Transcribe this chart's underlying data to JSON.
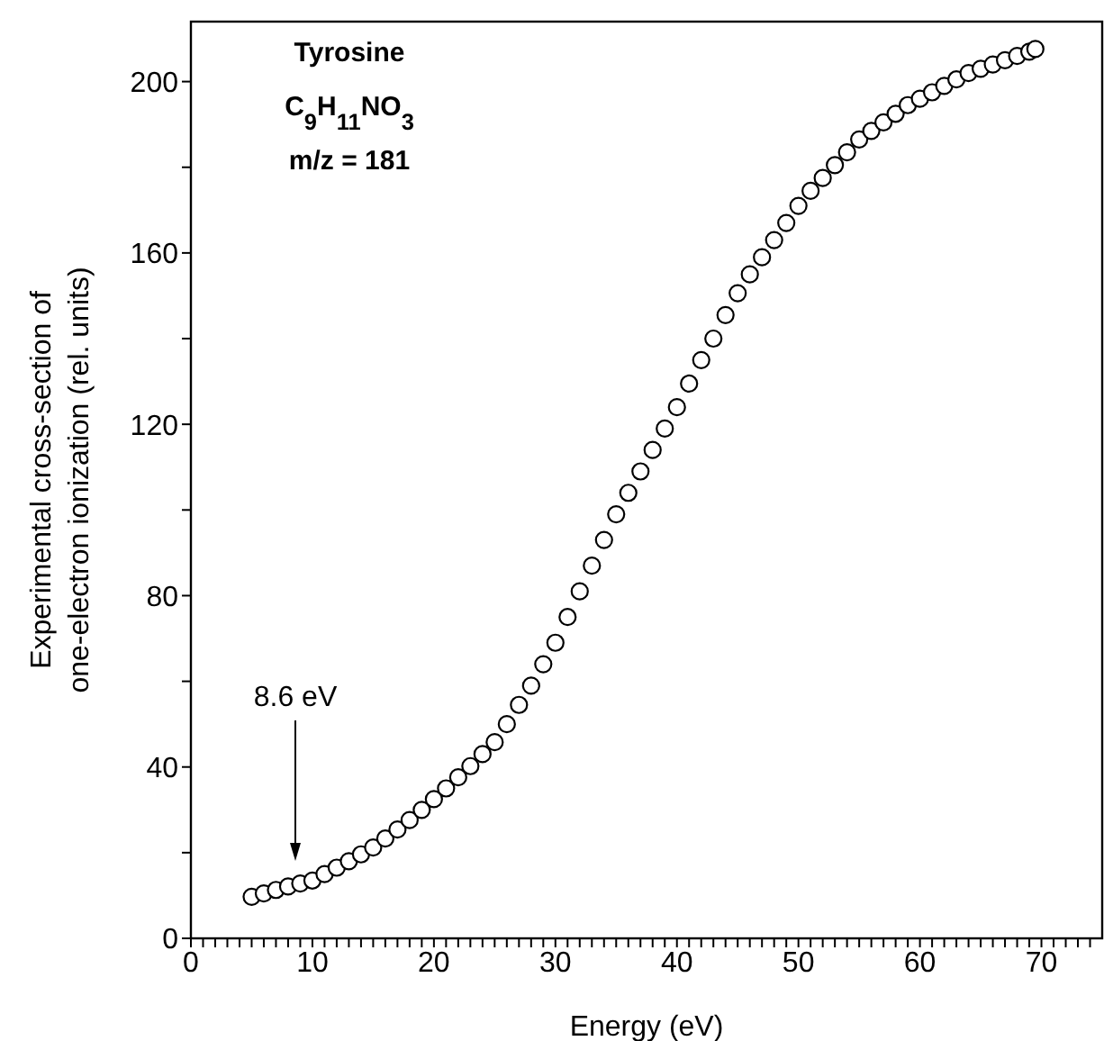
{
  "chart_data": {
    "type": "scatter",
    "xlabel": "Energy (eV)",
    "ylabel": "Experimental cross-section of one-electron ionization (rel. units)",
    "annotations": [
      "Tyrosine",
      "C$_{9}$H$_{11}$NO$_{3}$",
      "m/z = 181",
      "8.6 eV"
    ],
    "marker": "circle",
    "xlim": [
      0,
      75
    ],
    "ylim": [
      0,
      214
    ],
    "xticks": [
      0,
      {
        "value": 1,
        "label": null
      },
      {
        "value": 2,
        "label": null
      },
      {
        "value": 3,
        "label": null
      },
      {
        "value": 4,
        "label": null
      },
      {
        "value": 5,
        "label": null
      },
      {
        "value": 6,
        "label": null
      },
      {
        "value": 7,
        "label": null
      },
      {
        "value": 8,
        "label": null
      },
      {
        "value": 9,
        "label": null
      },
      10,
      {
        "value": 11,
        "label": null
      },
      {
        "value": 12,
        "label": null
      },
      {
        "value": 13,
        "label": null
      },
      {
        "value": 14,
        "label": null
      },
      {
        "value": 15,
        "label": null
      },
      {
        "value": 16,
        "label": null
      },
      {
        "value": 17,
        "label": null
      },
      {
        "value": 18,
        "label": null
      },
      {
        "value": 19,
        "label": null
      },
      20,
      {
        "value": 21,
        "label": null
      },
      {
        "value": 22,
        "label": null
      },
      {
        "value": 23,
        "label": null
      },
      {
        "value": 24,
        "label": null
      },
      {
        "value": 25,
        "label": null
      },
      {
        "value": 26,
        "label": null
      },
      {
        "value": 27,
        "label": null
      },
      {
        "value": 28,
        "label": null
      },
      {
        "value": 29,
        "label": null
      },
      30,
      {
        "value": 31,
        "label": null
      },
      {
        "value": 32,
        "label": null
      },
      {
        "value": 33,
        "label": null
      },
      {
        "value": 34,
        "label": null
      },
      {
        "value": 35,
        "label": null
      },
      {
        "value": 36,
        "label": null
      },
      {
        "value": 37,
        "label": null
      },
      {
        "value": 38,
        "label": null
      },
      {
        "value": 39,
        "label": null
      },
      40,
      {
        "value": 41,
        "label": null
      },
      {
        "value": 42,
        "label": null
      },
      {
        "value": 43,
        "label": null
      },
      {
        "value": 44,
        "label": null
      },
      {
        "value": 45,
        "label": null
      },
      {
        "value": 46,
        "label": null
      },
      {
        "value": 47,
        "label": null
      },
      {
        "value": 48,
        "label": null
      },
      {
        "value": 49,
        "label": null
      },
      50,
      {
        "value": 51,
        "label": null
      },
      {
        "value": 52,
        "label": null
      },
      {
        "value": 53,
        "label": null
      },
      {
        "value": 54,
        "label": null
      },
      {
        "value": 55,
        "label": null
      },
      {
        "value": 56,
        "label": null
      },
      {
        "value": 57,
        "label": null
      },
      {
        "value": 58,
        "label": null
      },
      {
        "value": 59,
        "label": null
      },
      60,
      {
        "value": 61,
        "label": null
      },
      {
        "value": 62,
        "label": null
      },
      {
        "value": 63,
        "label": null
      },
      {
        "value": 64,
        "label": null
      },
      {
        "value": 65,
        "label": null
      },
      {
        "value": 66,
        "label": null
      },
      {
        "value": 67,
        "label": null
      },
      {
        "value": 68,
        "label": null
      },
      {
        "value": 69,
        "label": null
      },
      70,
      {
        "value": 71,
        "label": null
      },
      {
        "value": 72,
        "label": null
      },
      {
        "value": 73,
        "label": null
      },
      {
        "value": 74,
        "label": null
      }
    ],
    "yticks": [
      0,
      {
        "value": 20,
        "label": null
      },
      40,
      {
        "value": 60,
        "label": null
      },
      80,
      {
        "value": 100,
        "label": null
      },
      120,
      {
        "value": 140,
        "label": null
      },
      160,
      {
        "value": 180,
        "label": null
      },
      200
    ],
    "series": [
      {
        "color": "#000000",
        "x": [
          5,
          6,
          7,
          8,
          9,
          10,
          11,
          12,
          13,
          14,
          15,
          16,
          17,
          18,
          19,
          20,
          21,
          22,
          23,
          24,
          25,
          26,
          27,
          28,
          29,
          30,
          31,
          32,
          33,
          34,
          35,
          36,
          37,
          38,
          39,
          40,
          41,
          42,
          43,
          44,
          45,
          46,
          47,
          48,
          49,
          50,
          51,
          52,
          53,
          54,
          55,
          56,
          57,
          58,
          59,
          60,
          61,
          62,
          63,
          64,
          65,
          66,
          67,
          68,
          69,
          69.5
        ],
        "values": [
          9.7,
          10.5,
          11.3,
          12.1,
          12.8,
          13.5,
          15,
          16.5,
          18,
          19.6,
          21.2,
          23.3,
          25.4,
          27.6,
          30,
          32.5,
          35,
          37.6,
          40.2,
          43,
          45.8,
          50,
          54.5,
          59,
          64,
          69,
          75,
          81,
          87,
          93,
          99,
          104,
          109,
          114,
          119,
          124,
          129.5,
          135,
          140,
          145.5,
          150.6,
          155,
          159,
          163,
          167,
          171,
          174.5,
          177.5,
          180.5,
          183.5,
          186.5,
          188.5,
          190.5,
          192.5,
          194.5,
          196,
          197.5,
          199,
          200.5,
          202,
          203,
          204,
          205,
          206,
          207,
          207.6
        ]
      }
    ]
  }
}
